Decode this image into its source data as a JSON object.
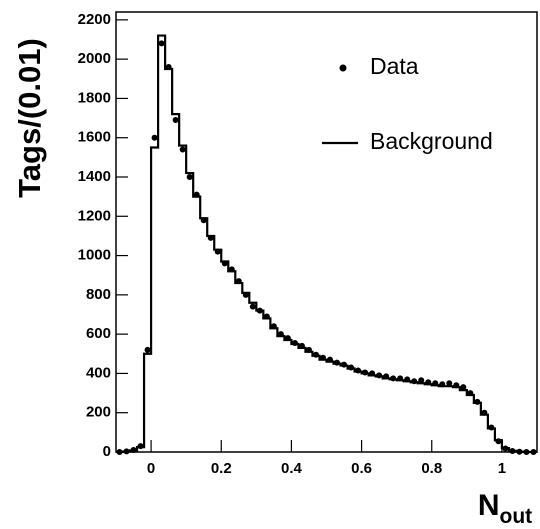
{
  "chart_data": {
    "type": "histogram",
    "ylabel": "Tags/(0.01)",
    "xlabel": [
      "N",
      "out"
    ],
    "bins": [
      -0.1,
      -0.08,
      -0.06,
      -0.04,
      -0.02,
      0,
      0.02,
      0.04,
      0.06,
      0.08,
      0.1,
      0.12,
      0.14,
      0.16,
      0.18,
      0.2,
      0.22,
      0.24,
      0.26,
      0.28,
      0.3,
      0.32,
      0.34,
      0.36,
      0.38,
      0.4,
      0.42,
      0.44,
      0.46,
      0.48,
      0.5,
      0.52,
      0.54,
      0.56,
      0.58,
      0.6,
      0.62,
      0.64,
      0.66,
      0.68,
      0.7,
      0.72,
      0.74,
      0.76,
      0.78,
      0.8,
      0.82,
      0.84,
      0.86,
      0.88,
      0.9,
      0.92,
      0.94,
      0.96,
      0.98,
      1,
      1.02,
      1.04,
      1.06,
      1.08,
      1.1
    ],
    "series": [
      {
        "name": "Data",
        "style": "points",
        "color": "#000000",
        "values": [
          0,
          3,
          10,
          30,
          520,
          1600,
          2080,
          1960,
          1690,
          1540,
          1400,
          1310,
          1180,
          1090,
          1020,
          960,
          930,
          870,
          800,
          740,
          720,
          690,
          640,
          600,
          580,
          555,
          540,
          520,
          495,
          480,
          470,
          455,
          445,
          430,
          415,
          405,
          400,
          390,
          385,
          375,
          375,
          370,
          360,
          365,
          355,
          350,
          345,
          350,
          340,
          330,
          300,
          255,
          200,
          125,
          55,
          18,
          5,
          1,
          0,
          0
        ]
      },
      {
        "name": "Background",
        "style": "step",
        "color": "#000000",
        "values": [
          0,
          2,
          8,
          25,
          500,
          1550,
          2120,
          1950,
          1720,
          1560,
          1420,
          1300,
          1190,
          1100,
          1030,
          970,
          920,
          860,
          810,
          760,
          720,
          680,
          630,
          590,
          570,
          550,
          530,
          510,
          490,
          470,
          460,
          450,
          440,
          425,
          410,
          400,
          390,
          385,
          375,
          370,
          365,
          360,
          355,
          350,
          345,
          340,
          335,
          335,
          330,
          315,
          290,
          250,
          190,
          120,
          60,
          20,
          6,
          2,
          0,
          0
        ]
      }
    ],
    "xlim": [
      -0.1,
      1.1
    ],
    "ylim": [
      0,
      2240
    ],
    "xticks": [
      0,
      0.2,
      0.4,
      0.6,
      0.8,
      1
    ],
    "yticks": [
      0,
      200,
      400,
      600,
      800,
      1000,
      1200,
      1400,
      1600,
      1800,
      2000,
      2200
    ],
    "legend": "upper right"
  }
}
